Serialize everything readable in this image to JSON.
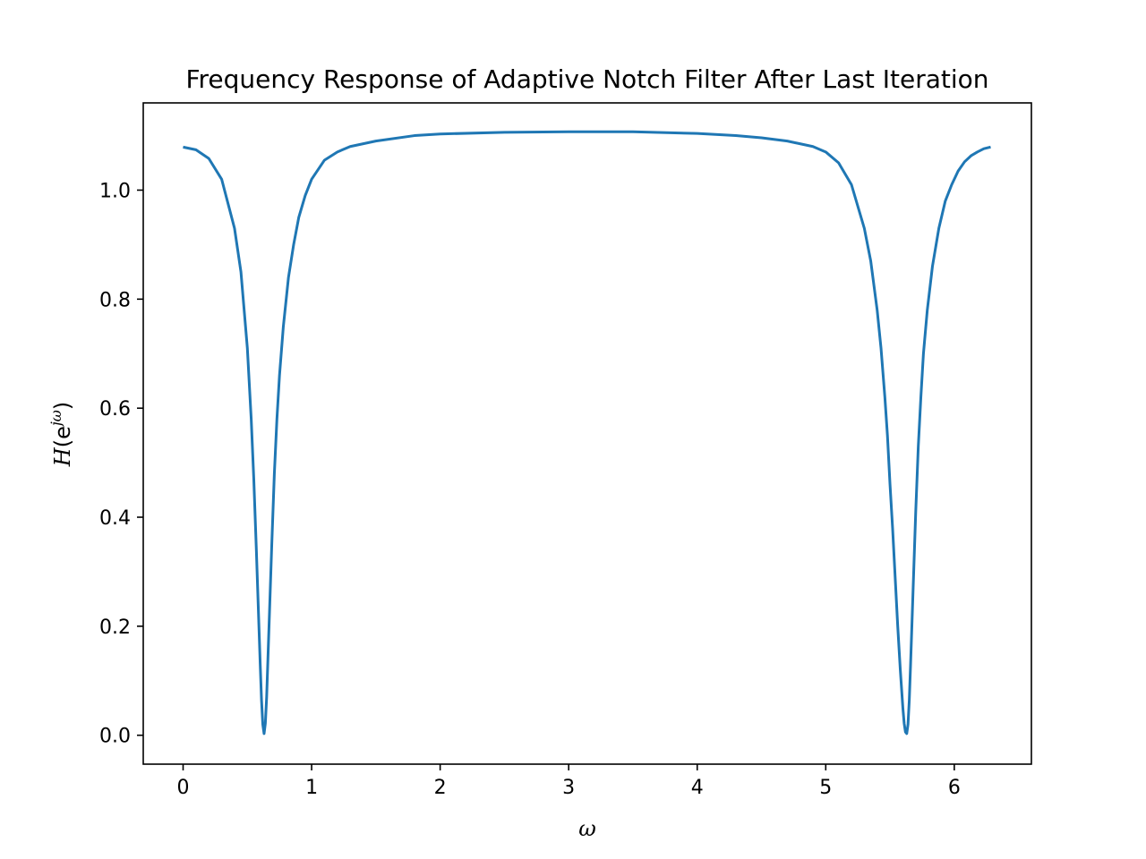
{
  "chart_data": {
    "type": "line",
    "title": "Frequency Response of Adaptive Notch Filter After Last Iteration",
    "xlabel": "ω",
    "ylabel": {
      "H": "H",
      "open": "(e",
      "sup": "jω",
      "close": ")"
    },
    "xlim": [
      -0.31,
      6.6
    ],
    "ylim": [
      -0.053,
      1.16
    ],
    "xticks": [
      0,
      1,
      2,
      3,
      4,
      5,
      6
    ],
    "yticks": [
      0.0,
      0.2,
      0.4,
      0.6,
      0.8,
      1.0
    ],
    "ytick_labels": [
      "0.0",
      "0.2",
      "0.4",
      "0.6",
      "0.8",
      "1.0"
    ],
    "grid": false,
    "series": [
      {
        "color": "#1f77b4",
        "x": [
          0.0,
          0.1,
          0.2,
          0.3,
          0.4,
          0.45,
          0.5,
          0.53,
          0.55,
          0.57,
          0.59,
          0.6,
          0.61,
          0.62,
          0.63,
          0.64,
          0.65,
          0.66,
          0.67,
          0.69,
          0.71,
          0.73,
          0.75,
          0.78,
          0.82,
          0.86,
          0.9,
          0.95,
          1.0,
          1.1,
          1.2,
          1.3,
          1.5,
          1.8,
          2.0,
          2.5,
          3.0,
          3.14,
          3.5,
          4.0,
          4.3,
          4.5,
          4.7,
          4.9,
          5.0,
          5.1,
          5.2,
          5.3,
          5.35,
          5.4,
          5.43,
          5.46,
          5.48,
          5.5,
          5.52,
          5.54,
          5.56,
          5.58,
          5.6,
          5.61,
          5.62,
          5.63,
          5.64,
          5.65,
          5.66,
          5.67,
          5.68,
          5.69,
          5.7,
          5.72,
          5.74,
          5.76,
          5.79,
          5.83,
          5.88,
          5.93,
          5.98,
          6.03,
          6.08,
          6.13,
          6.18,
          6.23,
          6.283
        ],
        "y": [
          1.079,
          1.074,
          1.058,
          1.02,
          0.93,
          0.85,
          0.71,
          0.58,
          0.47,
          0.34,
          0.2,
          0.13,
          0.065,
          0.02,
          0.003,
          0.022,
          0.07,
          0.14,
          0.21,
          0.35,
          0.48,
          0.58,
          0.66,
          0.75,
          0.84,
          0.9,
          0.95,
          0.99,
          1.02,
          1.055,
          1.07,
          1.08,
          1.09,
          1.1,
          1.103,
          1.106,
          1.107,
          1.107,
          1.107,
          1.104,
          1.1,
          1.096,
          1.09,
          1.08,
          1.07,
          1.05,
          1.01,
          0.93,
          0.87,
          0.78,
          0.71,
          0.62,
          0.55,
          0.46,
          0.38,
          0.29,
          0.2,
          0.12,
          0.05,
          0.022,
          0.006,
          0.003,
          0.02,
          0.065,
          0.13,
          0.2,
          0.27,
          0.34,
          0.41,
          0.53,
          0.62,
          0.7,
          0.78,
          0.86,
          0.93,
          0.98,
          1.01,
          1.035,
          1.052,
          1.063,
          1.07,
          1.076,
          1.079
        ]
      }
    ]
  }
}
